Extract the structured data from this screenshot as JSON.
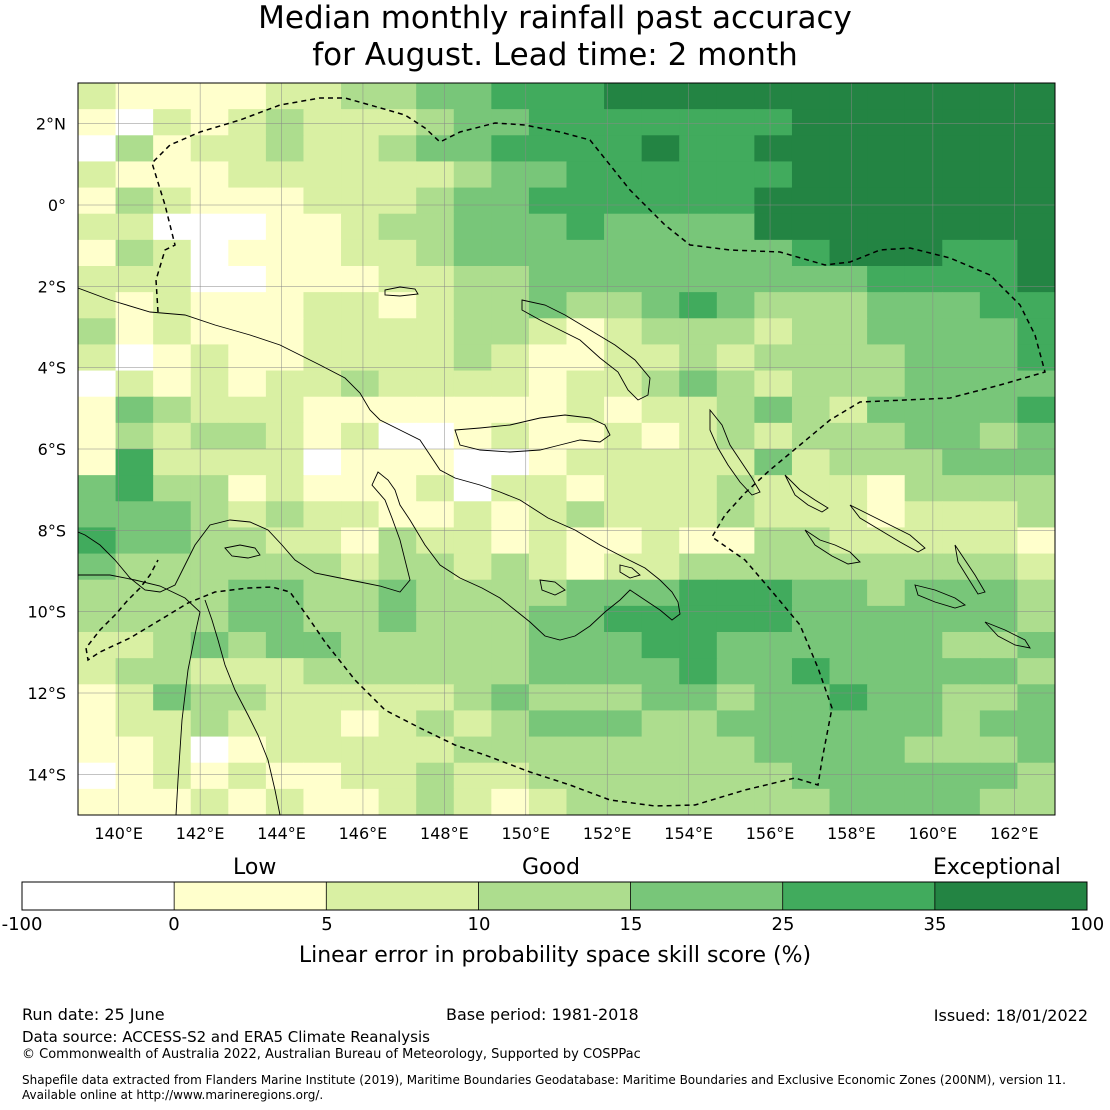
{
  "title": {
    "line1": "Median monthly rainfall past accuracy",
    "line2": "for August. Lead time: 2 month"
  },
  "map": {
    "lon_ticks": [
      "140°E",
      "142°E",
      "144°E",
      "146°E",
      "148°E",
      "150°E",
      "152°E",
      "154°E",
      "156°E",
      "158°E",
      "160°E",
      "162°E"
    ],
    "lat_ticks": [
      "2°N",
      "0°",
      "2°S",
      "4°S",
      "6°S",
      "8°S",
      "10°S",
      "12°S",
      "14°S"
    ],
    "extent": {
      "lon_min": 139,
      "lon_max": 163,
      "lat_min": -15,
      "lat_max": 3
    },
    "grid_step_deg": 0.833
  },
  "colorbar": {
    "categories": {
      "low": "Low",
      "good": "Good",
      "exceptional": "Exceptional"
    },
    "ticks": [
      "-100",
      "0",
      "5",
      "10",
      "15",
      "25",
      "35",
      "100"
    ],
    "colors": [
      "#ffffff",
      "#ffffcc",
      "#d9f0a3",
      "#addd8e",
      "#78c679",
      "#41ab5d",
      "#238443"
    ],
    "label": "Linear error in probability space skill score (%)"
  },
  "footer": {
    "run_date": "Run date: 25 June",
    "base_period": "Base period: 1981-2018",
    "issued": "Issued: 18/01/2022",
    "data_source": "Data source: ACCESS-S2 and ERA5 Climate Reanalysis",
    "copyright": "© Commonwealth of Australia 2022, Australian Bureau of Meteorology, Supported by COSPPac",
    "shapefile_line1": "Shapefile data extracted from Flanders Marine Institute (2019), Maritime Boundaries Geodatabase: Maritime Boundaries and Exclusive Economic Zones (200NM), version 11.",
    "shapefile_line2": "Available online at http://www.marineregions.org/."
  }
}
